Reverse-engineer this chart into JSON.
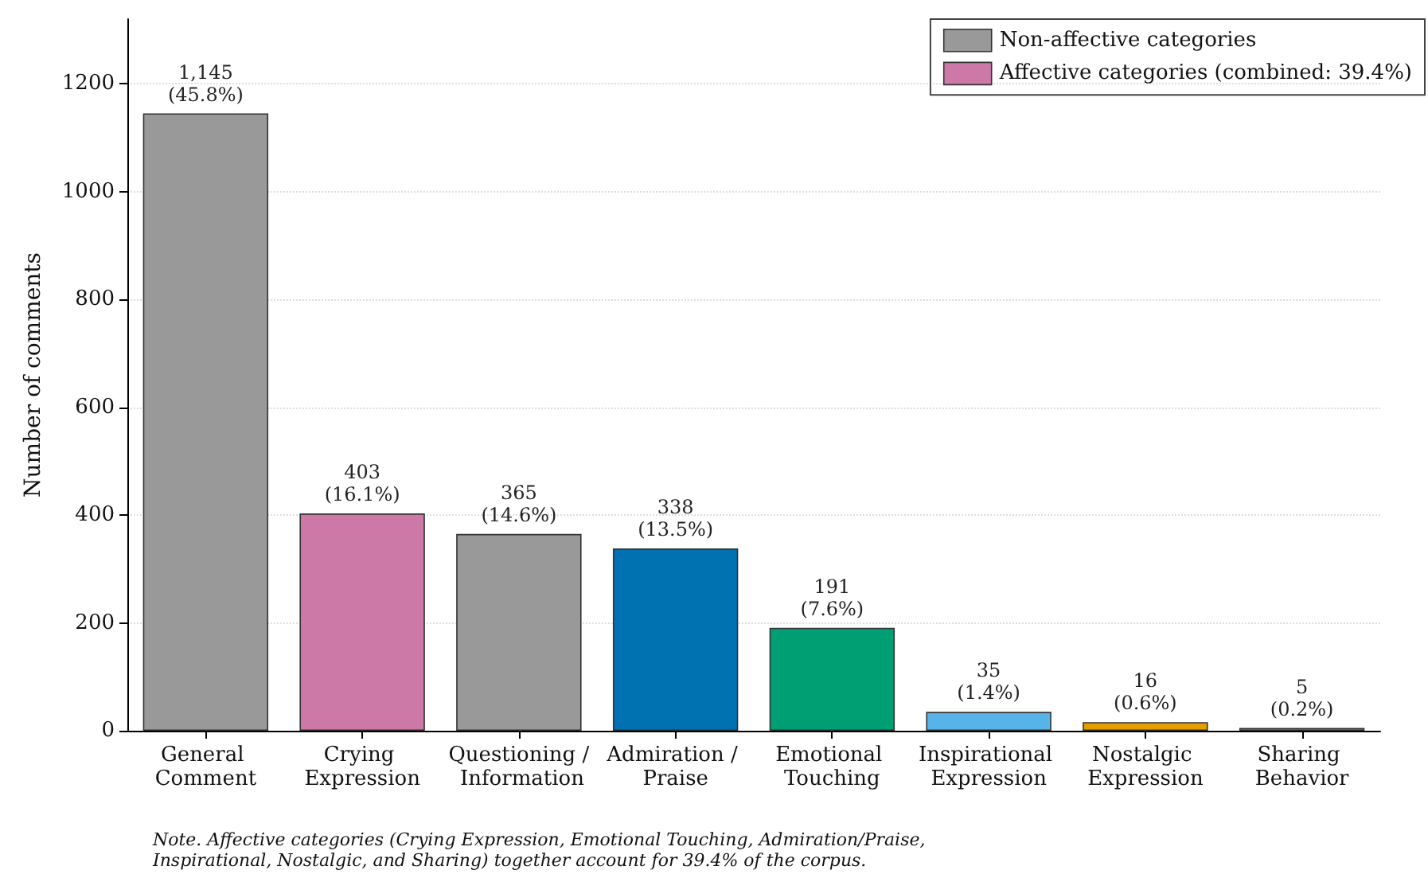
{
  "chart_data": {
    "type": "bar",
    "ylabel": "Number of comments",
    "categories": [
      "General Comment",
      "Crying Expression",
      "Questioning / Information",
      "Admiration / Praise",
      "Emotional Touching",
      "Inspirational Expression",
      "Nostalgic Expression",
      "Sharing Behavior"
    ],
    "series": [
      {
        "name": "Non-affective categories",
        "color": "#999999",
        "values": [
          1145,
          null,
          365,
          null,
          null,
          null,
          null,
          null
        ],
        "value_labels": [
          "1,145\n(45.8%)",
          null,
          "365\n(14.6%)",
          null,
          null,
          null,
          null,
          null
        ]
      },
      {
        "name": "Affective categories (combined: 39.4%)",
        "color": "#cc79a7",
        "colors": [
          null,
          "#cc79a7",
          null,
          "#0072b2",
          "#009e73",
          "#56b4e9",
          "#e69f00",
          "#f0e442"
        ],
        "values": [
          null,
          403,
          null,
          338,
          191,
          35,
          16,
          5
        ],
        "value_labels": [
          null,
          "403\n(16.1%)",
          null,
          "338\n(13.5%)",
          "191\n(7.6%)",
          "35\n(1.4%)",
          "16\n(0.6%)",
          "5\n(0.2%)"
        ]
      }
    ],
    "ylim": [
      0,
      1320
    ],
    "yticks": [
      0,
      200,
      400,
      600,
      800,
      1000,
      1200
    ],
    "grid": "y",
    "legend": "top right",
    "annotations": [
      "Note. Affective categories (Crying Expression, Emotional Touching, Admiration/Praise,\nInspirational, Nostalgic, and Sharing) together account for 39.4% of the corpus."
    ]
  }
}
